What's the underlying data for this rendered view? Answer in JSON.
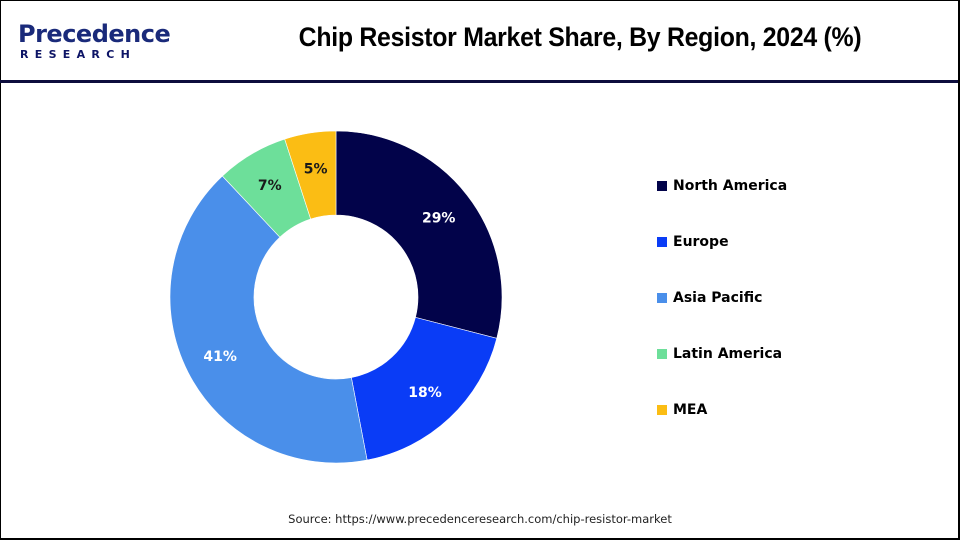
{
  "header": {
    "logo": {
      "main": "Precedence",
      "sub": "RESEARCH"
    },
    "title": "Chip Resistor Market Share, By Region, 2024 (%)"
  },
  "footer": {
    "source": "Source: https://www.precedenceresearch.com/chip-resistor-market"
  },
  "chart_data": {
    "type": "pie",
    "subtype": "donut",
    "title": "Chip Resistor Market Share, By Region, 2024 (%)",
    "categories": [
      "North America",
      "Europe",
      "Asia Pacific",
      "Latin America",
      "MEA"
    ],
    "values": [
      29,
      18,
      41,
      7,
      5
    ],
    "labels": [
      "29%",
      "18%",
      "41%",
      "7%",
      "5%"
    ],
    "colors": [
      "#02034a",
      "#0a3cf6",
      "#4a8fea",
      "#6ddf9a",
      "#fbbd14"
    ],
    "label_colors": [
      "#ffffff",
      "#ffffff",
      "#ffffff",
      "#1a1a1a",
      "#1a1a1a"
    ],
    "start_angle_deg": 0,
    "direction": "clockwise",
    "legend_position": "right",
    "unit": "%"
  },
  "legend": {
    "items": [
      {
        "label": "North America",
        "color": "#02034a"
      },
      {
        "label": "Europe",
        "color": "#0a3cf6"
      },
      {
        "label": "Asia Pacific",
        "color": "#4a8fea"
      },
      {
        "label": "Latin America",
        "color": "#6ddf9a"
      },
      {
        "label": "MEA",
        "color": "#fbbd14"
      }
    ]
  }
}
